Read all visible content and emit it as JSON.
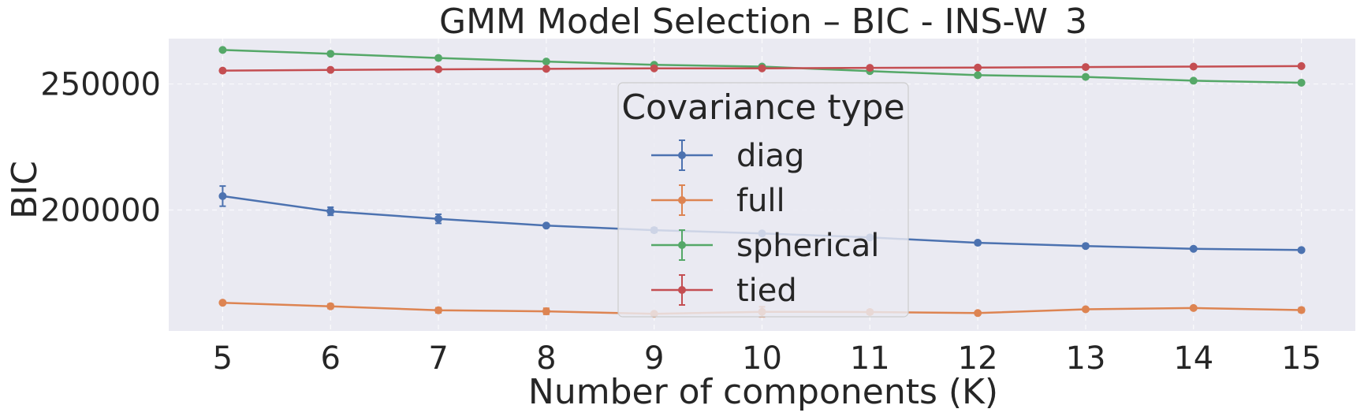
{
  "chart_data": {
    "type": "line",
    "title": "GMM Model Selection – BIC - INS-W_3",
    "xlabel": "Number of components (K)",
    "ylabel": "BIC",
    "x": [
      5,
      6,
      7,
      8,
      9,
      10,
      11,
      12,
      13,
      14,
      15
    ],
    "xlim": [
      4.5,
      15.5
    ],
    "ylim": [
      152000,
      268000
    ],
    "yticks": [
      200000,
      250000
    ],
    "xtick_labels": [
      "5",
      "6",
      "7",
      "8",
      "9",
      "10",
      "11",
      "12",
      "13",
      "14",
      "15"
    ],
    "ytick_labels": [
      "200000",
      "250000"
    ],
    "grid": true,
    "background": "#eaeaf2",
    "legend": {
      "title": "Covariance type",
      "placement": "center"
    },
    "series": [
      {
        "name": "diag",
        "color": "#4c72b0",
        "values": [
          205500,
          199500,
          196500,
          193800,
          192000,
          190700,
          189100,
          187000,
          185700,
          184600,
          184100
        ],
        "errors": [
          4000,
          1600,
          1800,
          500,
          900,
          800,
          500,
          500,
          500,
          500,
          500
        ]
      },
      {
        "name": "full",
        "color": "#dd8452",
        "values": [
          163200,
          161800,
          160200,
          159800,
          158800,
          159600,
          159500,
          159100,
          160600,
          161100,
          160300
        ],
        "errors": [
          500,
          900,
          1000,
          1200,
          600,
          2000,
          800,
          500,
          600,
          600,
          900
        ]
      },
      {
        "name": "spherical",
        "color": "#55a868",
        "values": [
          263500,
          262000,
          260300,
          258900,
          257600,
          256900,
          255100,
          253500,
          252800,
          251300,
          250500
        ],
        "errors": [
          300,
          300,
          300,
          300,
          300,
          300,
          300,
          300,
          300,
          300,
          300
        ]
      },
      {
        "name": "tied",
        "color": "#c44e52",
        "values": [
          255300,
          255600,
          255800,
          256000,
          256200,
          256200,
          256400,
          256500,
          256700,
          256900,
          257100
        ],
        "errors": [
          300,
          300,
          300,
          300,
          300,
          300,
          300,
          300,
          300,
          300,
          300
        ]
      }
    ]
  }
}
